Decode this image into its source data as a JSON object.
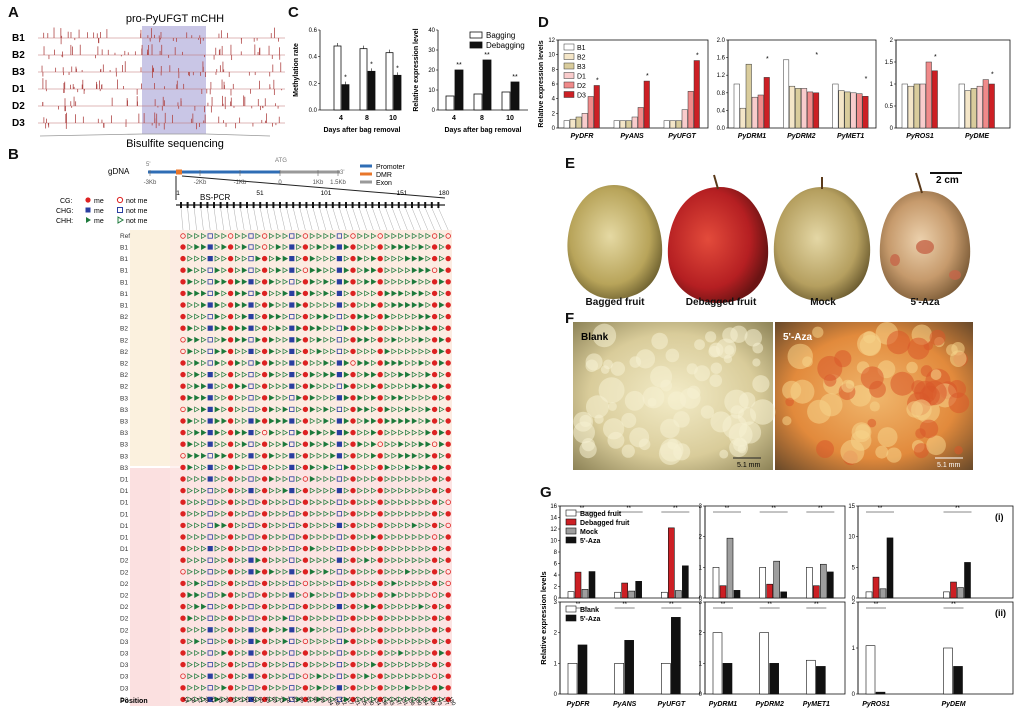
{
  "panels": {
    "A": "A",
    "B": "B",
    "C": "C",
    "D": "D",
    "E": "E",
    "F": "F",
    "G": "G"
  },
  "panel_a": {
    "title": "pro-PyUFGT mCHH",
    "rows": [
      "B1",
      "B2",
      "B3",
      "D1",
      "D2",
      "D3"
    ],
    "footer": "Bisulfite sequencing"
  },
  "panel_b": {
    "gdna_label": "gDNA",
    "atg_label": "ATG",
    "tss_label": "5'",
    "end_label": "3'",
    "ticks": [
      "-3Kb",
      "-2Kb",
      "-1Kb",
      "0",
      "1Kb",
      "1.5Kb"
    ],
    "legend": {
      "promoter": "Promoter",
      "dmr": "DMR",
      "exon": "Exon"
    },
    "bspcr_label": "BS-PCR",
    "context_legend": [
      {
        "name": "CG:",
        "me": "me",
        "notme": "not me"
      },
      {
        "name": "CHG:",
        "me": "me",
        "notme": "not me"
      },
      {
        "name": "CHH:",
        "me": "me",
        "notme": "not me"
      }
    ],
    "position_ticks": [
      "1",
      "51",
      "101",
      "151",
      "180"
    ],
    "ref_label": "Ref",
    "position_label": "Position",
    "row_labels": [
      "B1",
      "B1",
      "B1",
      "B1",
      "B1",
      "B1",
      "B2",
      "B2",
      "B2",
      "B2",
      "B2",
      "B2",
      "B2",
      "B3",
      "B3",
      "B3",
      "B3",
      "B3",
      "B3",
      "B3",
      "D1",
      "D1",
      "D1",
      "D1",
      "D1",
      "D1",
      "D1",
      "D2",
      "D2",
      "D2",
      "D2",
      "D2",
      "D2",
      "D2",
      "D3",
      "D3",
      "D3",
      "D3",
      "D3",
      "D3"
    ],
    "site_types": [
      "CG",
      "CHH",
      "CHH",
      "CHH",
      "CHG",
      "CHH",
      "CHH",
      "CG",
      "CHH",
      "CHH",
      "CHG",
      "CHH",
      "CG",
      "CHH",
      "CHH",
      "CHH",
      "CHG",
      "CHH",
      "CG",
      "CHH",
      "CHH",
      "CHH",
      "CHH",
      "CHG",
      "CHH",
      "CG",
      "CHH",
      "CHH",
      "CHH",
      "CG",
      "CHH",
      "CHH",
      "CHH",
      "CHH",
      "CHH",
      "CHH",
      "CHH",
      "CG",
      "CHH",
      "CG"
    ],
    "positions": [
      "14",
      "18",
      "22",
      "26",
      "31",
      "35",
      "39",
      "43",
      "47",
      "52",
      "56",
      "60",
      "65",
      "69",
      "73",
      "78",
      "82",
      "86",
      "91",
      "95",
      "99",
      "104",
      "108",
      "112",
      "117",
      "121",
      "125",
      "130",
      "134",
      "138",
      "143",
      "147",
      "151",
      "156",
      "160",
      "164",
      "169",
      "173",
      "177",
      "180"
    ]
  },
  "panel_c": {
    "left": {
      "ylabel": "Methylation rate",
      "xlabel": "Days after bag removal",
      "ylim": [
        0,
        0.6
      ],
      "yticks": [
        "0.0",
        "0.2",
        "0.4",
        "0.6"
      ]
    },
    "right": {
      "ylabel": "Relative expression level",
      "xlabel": "Days after bag removal",
      "ylim": [
        0,
        40
      ],
      "yticks": [
        "0",
        "10",
        "20",
        "30",
        "40"
      ]
    },
    "legend": [
      "Bagging",
      "Debagging"
    ],
    "star": "*",
    "dstar": "**"
  },
  "panel_d": {
    "ylabel": "Relative expression levels",
    "legend": [
      "B1",
      "B2",
      "B3",
      "D1",
      "D2",
      "D3"
    ],
    "groups": [
      {
        "name": "PyDFR"
      },
      {
        "name": "PyANS"
      },
      {
        "name": "PyUFGT"
      },
      {
        "name": "PyDRM1"
      },
      {
        "name": "PyDRM2"
      },
      {
        "name": "PyMET1"
      },
      {
        "name": "PyROS1"
      },
      {
        "name": "PyDME"
      }
    ],
    "sub1_ticks": [
      "0",
      "2",
      "4",
      "6",
      "8",
      "10",
      "12"
    ],
    "sub2_ticks": [
      "0.0",
      "0.4",
      "0.8",
      "1.2",
      "1.6",
      "2.0"
    ],
    "sub3_ticks": [
      "0",
      "0.5",
      "1",
      "1.5",
      "2"
    ],
    "star": "*"
  },
  "panel_e": {
    "scale": "2 cm",
    "labels": [
      "Bagged fruit",
      "Debagged fruit",
      "Mock",
      "5'-Aza"
    ]
  },
  "panel_f": {
    "labels": [
      "Blank",
      "5'-Aza"
    ],
    "scale": [
      "5.1 mm",
      "5.1 mm"
    ]
  },
  "panel_g": {
    "ylabel": "Relative expression levels",
    "legend_i": [
      "Bagged fruit",
      "Debagged fruit",
      "Mock",
      "5'-Aza"
    ],
    "legend_ii": [
      "Blank",
      "5'-Aza"
    ],
    "tag_i": "(i)",
    "tag_ii": "(ii)",
    "genes": [
      "PyDFR",
      "PyANS",
      "PyUFGT",
      "PyDRM1",
      "PyDRM2",
      "PyMET1",
      "PyROS1",
      "PyDEM"
    ],
    "ticks_i_1": [
      "0",
      "2",
      "4",
      "6",
      "8",
      "10",
      "12",
      "14",
      "16"
    ],
    "ticks_i_2": [
      "0",
      "1",
      "2",
      "3"
    ],
    "ticks_i_3": [
      "0",
      "5",
      "10",
      "15"
    ],
    "ticks_ii_1": [
      "0",
      "1",
      "2",
      "3"
    ],
    "ticks_ii_2": [
      "0",
      "1",
      "2",
      "3"
    ],
    "ticks_ii_3": [
      "0",
      "1",
      "2"
    ],
    "star": "*",
    "dstar": "**"
  },
  "colors": {
    "accent_red": "#cc1f24",
    "pink": "#f2a0a0",
    "beige": "#f4e6c8",
    "tan": "#d9cc9c",
    "dmr_orange": "#e8762a",
    "promoter_blue": "#2f6db5",
    "methyl_green": "#1e7a3c",
    "methyl_blue": "#2a3fa0",
    "panelb_beige": "#fbf1de",
    "panelb_pink": "#fbe0e0"
  },
  "chart_data": [
    {
      "type": "bar",
      "title": "C left",
      "xlabel": "Days after bag removal",
      "ylabel": "Methylation rate",
      "categories": [
        "4",
        "8",
        "10"
      ],
      "ylim": [
        0,
        0.6
      ],
      "series": [
        {
          "name": "Bagging",
          "values": [
            0.48,
            0.46,
            0.43
          ]
        },
        {
          "name": "Debagging",
          "values": [
            0.19,
            0.29,
            0.26
          ]
        }
      ]
    },
    {
      "type": "bar",
      "title": "C right",
      "xlabel": "Days after bag removal",
      "ylabel": "Relative expression level",
      "categories": [
        "4",
        "8",
        "10"
      ],
      "ylim": [
        0,
        40
      ],
      "series": [
        {
          "name": "Bagging",
          "values": [
            7,
            8,
            9
          ]
        },
        {
          "name": "Debagging",
          "values": [
            20,
            25,
            14
          ]
        }
      ]
    },
    {
      "type": "bar",
      "title": "D",
      "ylabel": "Relative expression levels",
      "categories": [
        "PyDFR",
        "PyANS",
        "PyUFGT",
        "PyDRM1",
        "PyDRM2",
        "PyMET1",
        "PyROS1",
        "PyDME"
      ],
      "series": [
        {
          "name": "B1",
          "values": [
            1.0,
            1.0,
            1.0,
            1.0,
            1.55,
            1.0,
            1.0,
            1.0
          ]
        },
        {
          "name": "B2",
          "values": [
            1.2,
            1.0,
            1.0,
            0.45,
            0.95,
            0.85,
            0.95,
            0.85
          ]
        },
        {
          "name": "B3",
          "values": [
            1.5,
            1.0,
            1.0,
            1.45,
            0.9,
            0.82,
            1.0,
            0.9
          ]
        },
        {
          "name": "D1",
          "values": [
            2.0,
            1.5,
            2.5,
            0.7,
            0.9,
            0.8,
            1.0,
            0.95
          ]
        },
        {
          "name": "D2",
          "values": [
            4.3,
            2.8,
            5.0,
            0.75,
            0.82,
            0.78,
            1.5,
            1.1
          ]
        },
        {
          "name": "D3",
          "values": [
            5.8,
            6.4,
            9.2,
            1.15,
            0.8,
            0.72,
            1.3,
            1.0
          ]
        }
      ]
    },
    {
      "type": "bar",
      "title": "G (i)",
      "ylabel": "Relative expression levels",
      "categories": [
        "PyDFR",
        "PyANS",
        "PyUFGT",
        "PyDRM1",
        "PyDRM2",
        "PyMET1",
        "PyROS1",
        "PyDEM"
      ],
      "series": [
        {
          "name": "Bagged fruit",
          "values": [
            1.1,
            1.0,
            1.0,
            1.0,
            1.0,
            1.0,
            1.0,
            1.0
          ]
        },
        {
          "name": "Debagged fruit",
          "values": [
            4.5,
            2.6,
            12.2,
            0.4,
            0.45,
            0.4,
            3.4,
            2.6
          ]
        },
        {
          "name": "Mock",
          "values": [
            1.5,
            1.2,
            1.3,
            1.95,
            1.2,
            1.1,
            1.5,
            1.7
          ]
        },
        {
          "name": "5'-Aza",
          "values": [
            4.6,
            2.9,
            5.6,
            0.25,
            0.2,
            0.85,
            9.8,
            5.8
          ]
        }
      ]
    },
    {
      "type": "bar",
      "title": "G (ii)",
      "ylabel": "Relative expression levels",
      "categories": [
        "PyDFR",
        "PyANS",
        "PyUFGT",
        "PyDRM1",
        "PyDRM2",
        "PyMET1",
        "PyROS1",
        "PyDEM"
      ],
      "series": [
        {
          "name": "Blank",
          "values": [
            1.0,
            1.0,
            1.0,
            2.0,
            2.0,
            1.1,
            1.05,
            1.0
          ]
        },
        {
          "name": "5'-Aza",
          "values": [
            1.6,
            1.75,
            2.5,
            1.0,
            1.0,
            0.9,
            0.04,
            0.6
          ]
        }
      ]
    }
  ]
}
